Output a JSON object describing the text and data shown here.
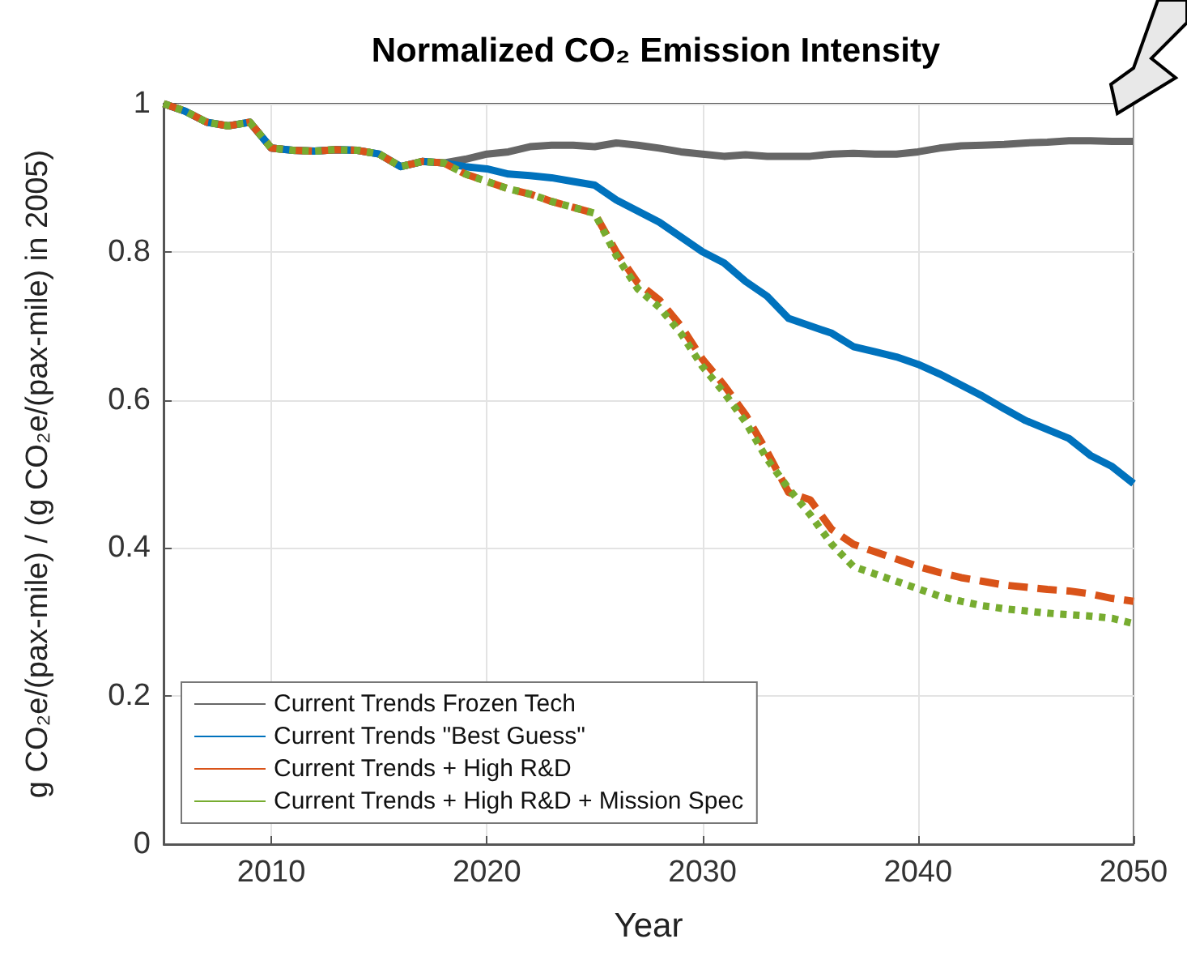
{
  "chart_data": {
    "type": "line",
    "title": "Normalized CO₂ Emission Intensity",
    "xlabel": "Year",
    "ylabel": "g CO₂e/(pax-mile) / (g CO₂e/(pax-mile) in 2005)",
    "x": [
      2005,
      2006,
      2007,
      2008,
      2009,
      2010,
      2011,
      2012,
      2013,
      2014,
      2015,
      2016,
      2017,
      2018,
      2019,
      2020,
      2021,
      2022,
      2023,
      2024,
      2025,
      2026,
      2027,
      2028,
      2029,
      2030,
      2031,
      2032,
      2033,
      2034,
      2035,
      2036,
      2037,
      2038,
      2039,
      2040,
      2041,
      2042,
      2043,
      2044,
      2045,
      2046,
      2047,
      2048,
      2049,
      2050
    ],
    "series": [
      {
        "name": "Current Trends Frozen Tech",
        "color": "#666666",
        "line_style": "solid",
        "values": [
          1.0,
          0.99,
          0.975,
          0.97,
          0.975,
          0.94,
          0.937,
          0.936,
          0.938,
          0.937,
          0.932,
          0.915,
          0.922,
          0.92,
          0.925,
          0.932,
          0.935,
          0.942,
          0.944,
          0.944,
          0.942,
          0.947,
          0.944,
          0.94,
          0.935,
          0.932,
          0.929,
          0.931,
          0.929,
          0.929,
          0.929,
          0.932,
          0.933,
          0.932,
          0.932,
          0.935,
          0.94,
          0.943,
          0.944,
          0.945,
          0.947,
          0.948,
          0.95,
          0.95,
          0.949,
          0.949
        ]
      },
      {
        "name": "Current Trends \"Best Guess\"",
        "color": "#0072bd",
        "line_style": "solid",
        "values": [
          1.0,
          0.99,
          0.975,
          0.97,
          0.975,
          0.94,
          0.937,
          0.936,
          0.938,
          0.937,
          0.932,
          0.915,
          0.922,
          0.92,
          0.915,
          0.912,
          0.905,
          0.903,
          0.9,
          0.895,
          0.89,
          0.87,
          0.855,
          0.84,
          0.82,
          0.8,
          0.785,
          0.76,
          0.74,
          0.71,
          0.7,
          0.69,
          0.672,
          0.665,
          0.658,
          0.648,
          0.635,
          0.62,
          0.605,
          0.588,
          0.572,
          0.56,
          0.548,
          0.525,
          0.51,
          0.487
        ]
      },
      {
        "name": "Current Trends + High R&D",
        "color": "#d95319",
        "line_style": "dashed",
        "values": [
          1.0,
          0.99,
          0.975,
          0.97,
          0.975,
          0.94,
          0.937,
          0.936,
          0.938,
          0.937,
          0.932,
          0.915,
          0.922,
          0.92,
          0.905,
          0.895,
          0.885,
          0.878,
          0.868,
          0.86,
          0.852,
          0.8,
          0.758,
          0.735,
          0.7,
          0.655,
          0.62,
          0.58,
          0.53,
          0.475,
          0.465,
          0.425,
          0.405,
          0.395,
          0.385,
          0.375,
          0.367,
          0.36,
          0.355,
          0.35,
          0.347,
          0.344,
          0.342,
          0.338,
          0.332,
          0.328
        ]
      },
      {
        "name": "Current Trends + High R&D + Mission Spec",
        "color": "#77ac30",
        "line_style": "dotted",
        "values": [
          1.0,
          0.99,
          0.975,
          0.97,
          0.975,
          0.94,
          0.937,
          0.936,
          0.938,
          0.937,
          0.932,
          0.915,
          0.922,
          0.92,
          0.905,
          0.895,
          0.885,
          0.878,
          0.868,
          0.86,
          0.852,
          0.795,
          0.75,
          0.725,
          0.69,
          0.645,
          0.61,
          0.57,
          0.52,
          0.48,
          0.445,
          0.405,
          0.375,
          0.365,
          0.355,
          0.345,
          0.335,
          0.328,
          0.322,
          0.318,
          0.315,
          0.312,
          0.31,
          0.308,
          0.305,
          0.298
        ]
      }
    ],
    "xlim": [
      2005,
      2050
    ],
    "xticks": [
      2010,
      2020,
      2030,
      2040,
      2050
    ],
    "ylim": [
      0,
      1
    ],
    "yticks": [
      0,
      0.2,
      0.4,
      0.6,
      0.8,
      1
    ],
    "grid": true,
    "legend": "bottom left",
    "marker": "none"
  }
}
